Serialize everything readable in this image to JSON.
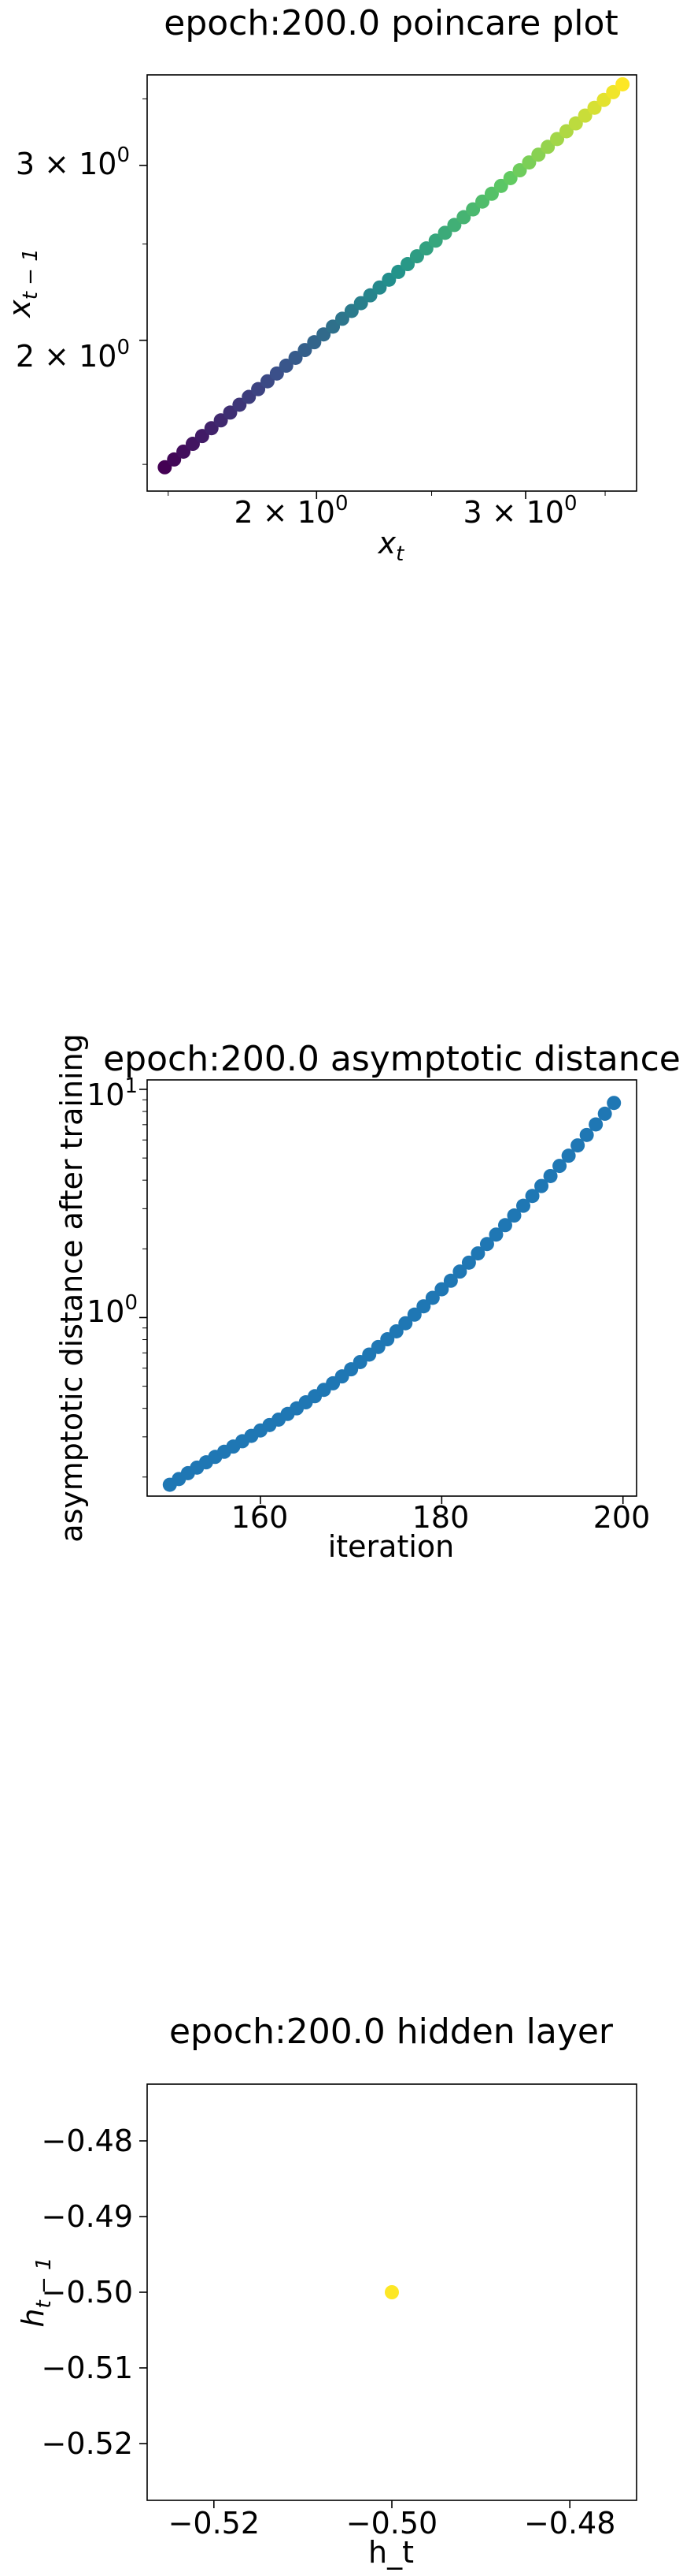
{
  "chart_data": [
    {
      "type": "scatter",
      "title": "epoch:200.0 poincare plot",
      "xlabel": "x_t",
      "ylabel": "x_{t-1}",
      "xscale": "log",
      "yscale": "log",
      "xlim": [
        1.44,
        3.72
      ],
      "ylim": [
        1.41,
        3.7
      ],
      "xticks": [
        {
          "value": 2,
          "label": "2 × 10^0"
        },
        {
          "value": 3,
          "label": "3 × 10^0"
        }
      ],
      "yticks": [
        {
          "value": 2,
          "label": "2 × 10^0"
        },
        {
          "value": 3,
          "label": "3 × 10^0"
        }
      ],
      "colormap": "viridis",
      "point_range": [
        1.49,
        3.62
      ],
      "point_count": 50,
      "grid": false
    },
    {
      "type": "scatter",
      "title": "epoch:200.0 asymptotic distance",
      "xlabel": "iteration",
      "ylabel": "asymptotic distance after training",
      "xscale": "linear",
      "yscale": "log",
      "xlim": [
        147.5,
        201.5
      ],
      "ylim": [
        0.165,
        11.0
      ],
      "xticks": [
        {
          "value": 160,
          "label": "160"
        },
        {
          "value": 180,
          "label": "180"
        },
        {
          "value": 200,
          "label": "200"
        }
      ],
      "yticks": [
        {
          "value": 1,
          "label": "10^0"
        },
        {
          "value": 10,
          "label": "10^1"
        }
      ],
      "color": "#1f77b4",
      "x": [
        150,
        151,
        152,
        153,
        154,
        155,
        156,
        157,
        158,
        159,
        160,
        161,
        162,
        163,
        164,
        165,
        166,
        167,
        168,
        169,
        170,
        171,
        172,
        173,
        174,
        175,
        176,
        177,
        178,
        179,
        180,
        181,
        182,
        183,
        184,
        185,
        186,
        187,
        188,
        189,
        190,
        191,
        192,
        193,
        194,
        195,
        196,
        197,
        198,
        199
      ],
      "y": [
        0.185,
        0.196,
        0.208,
        0.22,
        0.232,
        0.245,
        0.258,
        0.272,
        0.287,
        0.303,
        0.32,
        0.338,
        0.357,
        0.378,
        0.4,
        0.425,
        0.452,
        0.482,
        0.515,
        0.552,
        0.593,
        0.638,
        0.688,
        0.743,
        0.803,
        0.87,
        0.944,
        1.03,
        1.12,
        1.22,
        1.33,
        1.45,
        1.59,
        1.74,
        1.91,
        2.1,
        2.31,
        2.54,
        2.8,
        3.09,
        3.41,
        3.77,
        4.17,
        4.62,
        5.12,
        5.68,
        6.31,
        7.02,
        7.82,
        8.72
      ],
      "grid": false
    },
    {
      "type": "scatter",
      "title": "epoch:200.0 hidden layer",
      "xlabel": "h_t",
      "ylabel": "h_{t-1}",
      "xscale": "linear",
      "yscale": "linear",
      "xlim": [
        -0.5275,
        -0.4725
      ],
      "ylim": [
        -0.5275,
        -0.4725
      ],
      "xticks": [
        {
          "value": -0.52,
          "label": "−0.52"
        },
        {
          "value": -0.5,
          "label": "−0.50"
        },
        {
          "value": -0.48,
          "label": "−0.48"
        }
      ],
      "yticks": [
        {
          "value": -0.48,
          "label": "−0.48"
        },
        {
          "value": -0.49,
          "label": "−0.49"
        },
        {
          "value": -0.5,
          "label": "−0.50"
        },
        {
          "value": -0.51,
          "label": "−0.51"
        },
        {
          "value": -0.52,
          "label": "−0.52"
        }
      ],
      "color": "#fde725",
      "x": [
        -0.5
      ],
      "y": [
        -0.5
      ],
      "grid": false
    }
  ]
}
